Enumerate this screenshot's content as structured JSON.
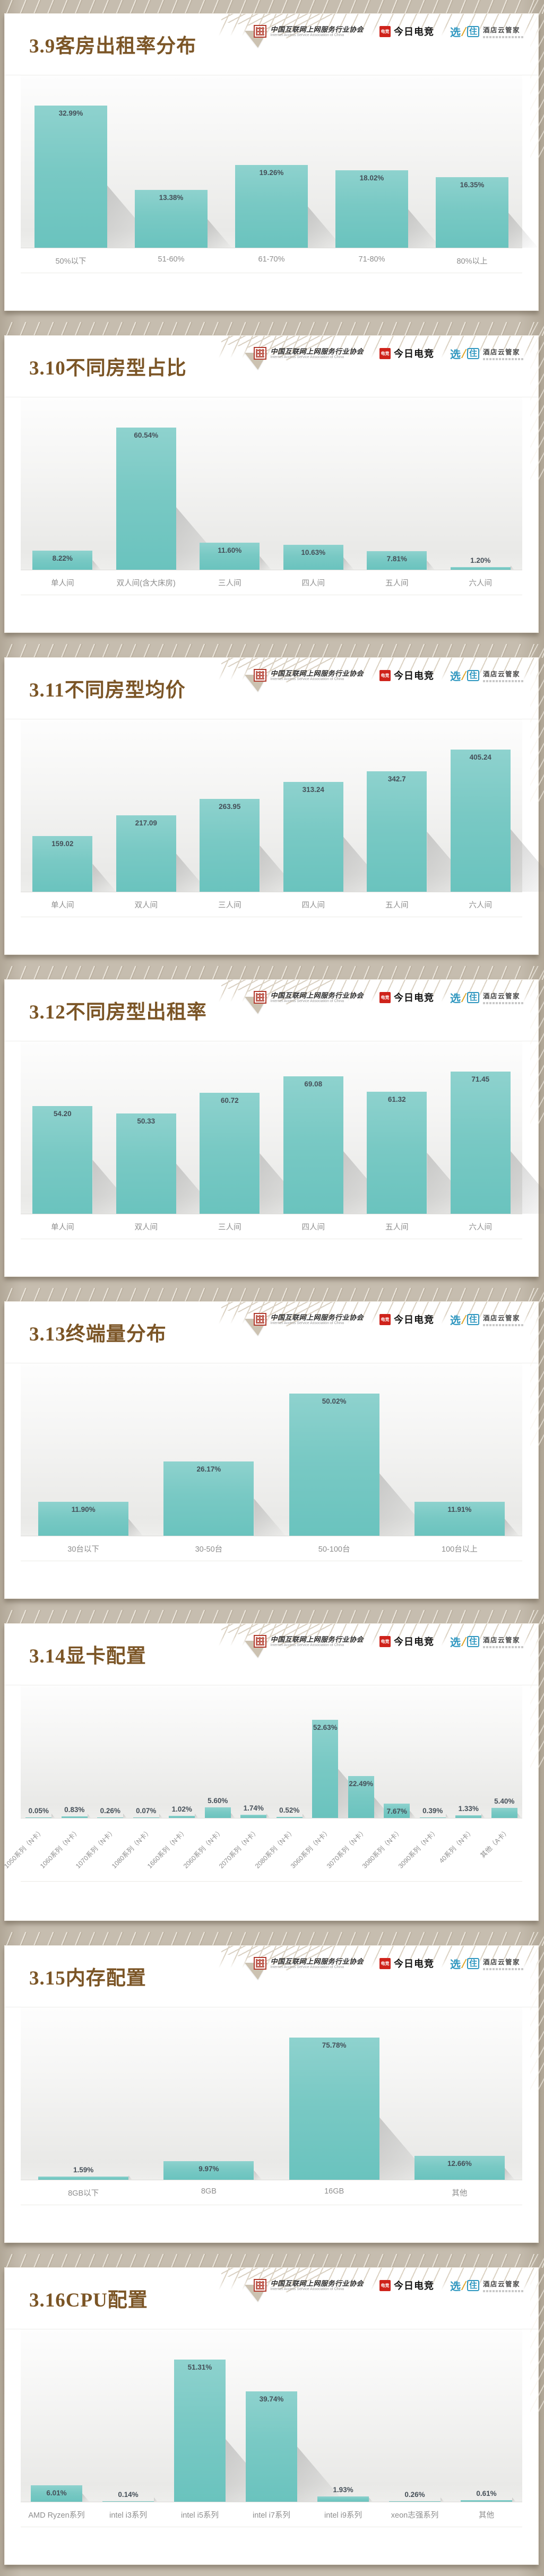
{
  "header": {
    "association": {
      "name_cn": "中国互联网上网服务行业协会",
      "name_en": "Internet Access Service Association of China"
    },
    "esports": {
      "badge": "电竞",
      "name": "今日电竞"
    },
    "hotel": {
      "brand_left": "选",
      "brand_right": "住",
      "name": "酒店云管家"
    }
  },
  "colors": {
    "bar_top": "#8ed2ce",
    "bar_bottom": "#6ac3be",
    "title_brown": "#7b5526",
    "badge_red": "#cf231b",
    "brand_blue": "#2f97c0",
    "page_beige": "#c6bdaf"
  },
  "chart_data": [
    {
      "type": "bar",
      "title": "3.9客房出租率分布",
      "categories": [
        "50%以下",
        "51-60%",
        "61-70%",
        "71-80%",
        "80%以上"
      ],
      "values": [
        32.99,
        13.38,
        19.26,
        18.02,
        16.35
      ],
      "value_labels": [
        "32.99%",
        "13.38%",
        "19.26%",
        "18.02%",
        "16.35%"
      ],
      "rotated_labels": false,
      "grid": false,
      "legend": "none",
      "ylim": [
        0,
        35
      ]
    },
    {
      "type": "bar",
      "title": "3.10不同房型占比",
      "categories": [
        "单人间",
        "双人间(含大床房)",
        "三人间",
        "四人间",
        "五人间",
        "六人间"
      ],
      "values": [
        8.22,
        60.54,
        11.6,
        10.63,
        7.81,
        1.2
      ],
      "value_labels": [
        "8.22%",
        "60.54%",
        "11.60%",
        "10.63%",
        "7.81%",
        "1.20%"
      ],
      "rotated_labels": false,
      "grid": false,
      "legend": "none",
      "ylim": [
        0,
        65
      ]
    },
    {
      "type": "bar",
      "title": "3.11不同房型均价",
      "categories": [
        "单人间",
        "双人间",
        "三人间",
        "四人间",
        "五人间",
        "六人间"
      ],
      "values": [
        159.02,
        217.09,
        263.95,
        313.24,
        342.7,
        405.24
      ],
      "value_labels": [
        "159.02",
        "217.09",
        "263.95",
        "313.24",
        "342.7",
        "405.24"
      ],
      "rotated_labels": false,
      "grid": false,
      "legend": "none",
      "ylim": [
        0,
        430
      ]
    },
    {
      "type": "bar",
      "title": "3.12不同房型出租率",
      "categories": [
        "单人间",
        "双人间",
        "三人间",
        "四人间",
        "五人间",
        "六人间"
      ],
      "values": [
        54.2,
        50.33,
        60.72,
        69.08,
        61.32,
        71.45
      ],
      "value_labels": [
        "54.20",
        "50.33",
        "60.72",
        "69.08",
        "61.32",
        "71.45"
      ],
      "rotated_labels": false,
      "grid": false,
      "legend": "none",
      "ylim": [
        0,
        78
      ]
    },
    {
      "type": "bar",
      "title": "3.13终端量分布",
      "categories": [
        "30台以下",
        "30-50台",
        "50-100台",
        "100台以上"
      ],
      "values": [
        11.9,
        26.17,
        50.02,
        11.91
      ],
      "value_labels": [
        "11.90%",
        "26.17%",
        "50.02%",
        "11.91%"
      ],
      "rotated_labels": false,
      "grid": false,
      "legend": "none",
      "ylim": [
        0,
        55
      ]
    },
    {
      "type": "bar",
      "title": "3.14显卡配置",
      "categories": [
        "1050系列（N卡）",
        "1060系列（N卡）",
        "1070系列（N卡）",
        "1080系列（N卡）",
        "1660系列（N卡）",
        "2060系列（N卡）",
        "2070系列（N卡）",
        "2080系列（N卡）",
        "3060系列（N卡）",
        "3070系列（N卡）",
        "3080系列（N卡）",
        "3090系列（N卡）",
        "40系列（N卡）",
        "其他（A卡）"
      ],
      "values": [
        0.05,
        0.83,
        0.26,
        0.07,
        1.02,
        5.6,
        1.74,
        0.52,
        52.63,
        22.49,
        7.67,
        0.39,
        1.33,
        5.4
      ],
      "value_labels": [
        "0.05%",
        "0.83%",
        "0.26%",
        "0.07%",
        "1.02%",
        "5.60%",
        "1.74%",
        "0.52%",
        "52.63%",
        "22.49%",
        "7.67%",
        "0.39%",
        "1.33%",
        "5.40%"
      ],
      "rotated_labels": true,
      "grid": false,
      "legend": "none",
      "ylim": [
        0,
        58
      ]
    },
    {
      "type": "bar",
      "title": "3.15内存配置",
      "categories": [
        "8GB以下",
        "8GB",
        "16GB",
        "其他"
      ],
      "values": [
        1.59,
        9.97,
        75.78,
        12.66
      ],
      "value_labels": [
        "1.59%",
        "9.97%",
        "75.78%",
        "12.66%"
      ],
      "rotated_labels": false,
      "grid": false,
      "legend": "none",
      "ylim": [
        0,
        83
      ]
    },
    {
      "type": "bar",
      "title": "3.16CPU配置",
      "categories": [
        "AMD Ryzen系列",
        "intel i3系列",
        "intel i5系列",
        "intel i7系列",
        "intel i9系列",
        "xeon志强系列",
        "其他"
      ],
      "values": [
        6.01,
        0.14,
        51.31,
        39.74,
        1.93,
        0.26,
        0.61
      ],
      "value_labels": [
        "6.01%",
        "0.14%",
        "51.31%",
        "39.74%",
        "1.93%",
        "0.26%",
        "0.61%"
      ],
      "rotated_labels": false,
      "grid": false,
      "legend": "none",
      "ylim": [
        0,
        56
      ]
    }
  ]
}
